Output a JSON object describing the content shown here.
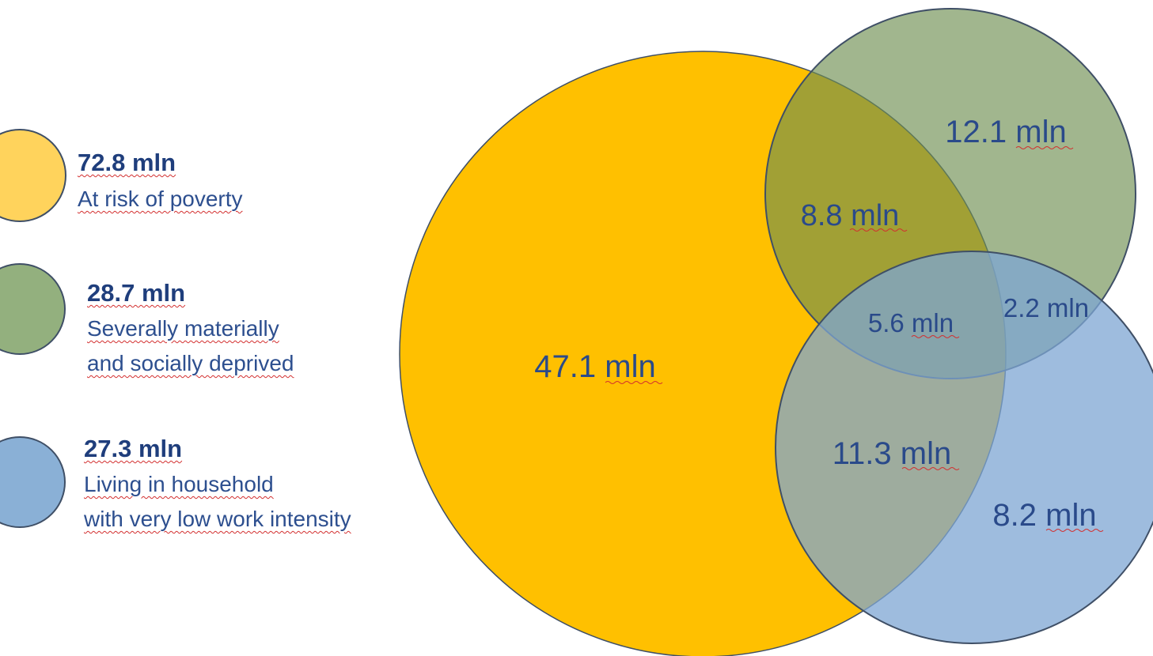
{
  "legend": [
    {
      "value": "72.8 mln",
      "lines": [
        "At risk of poverty"
      ],
      "color": "#ffd35c",
      "icon": "yellow-circle-swatch"
    },
    {
      "value": "28.7 mln",
      "lines": [
        "Severally materially",
        "and socially deprived"
      ],
      "color": "#93b07e",
      "icon": "green-circle-swatch"
    },
    {
      "value": "27.3 mln",
      "lines": [
        "Living in household",
        "with very low work intensity"
      ],
      "color": "#8ab0d6",
      "icon": "blue-circle-swatch"
    }
  ],
  "regions": {
    "poverty_only": "47.1 mln",
    "deprived_only": "12.1 mln",
    "poverty_and_deprived": "8.8 mln",
    "all_three": "5.6 mln",
    "deprived_and_work": "2.2 mln",
    "poverty_and_work": "11.3 mln",
    "work_only": "8.2 mln"
  },
  "colors": {
    "poverty": "#ffc000",
    "deprived": "#7f9f62",
    "work_intensity": "#7ea6d3",
    "outline": "#3f4f66",
    "text_dark": "#1f3e7c",
    "text": "#2d4f8f",
    "spellcheck": "#d32f2f"
  }
}
